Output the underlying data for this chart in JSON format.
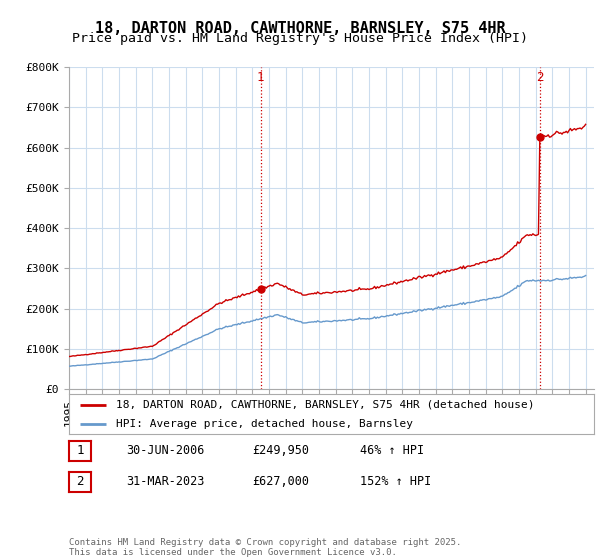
{
  "title": "18, DARTON ROAD, CAWTHORNE, BARNSLEY, S75 4HR",
  "subtitle": "Price paid vs. HM Land Registry's House Price Index (HPI)",
  "ylim": [
    0,
    800000
  ],
  "yticks": [
    0,
    100000,
    200000,
    300000,
    400000,
    500000,
    600000,
    700000,
    800000
  ],
  "ytick_labels": [
    "£0",
    "£100K",
    "£200K",
    "£300K",
    "£400K",
    "£500K",
    "£600K",
    "£700K",
    "£800K"
  ],
  "hpi_color": "#6699cc",
  "price_color": "#cc0000",
  "background_color": "#ffffff",
  "grid_color": "#ccddee",
  "transactions": [
    {
      "t": 2006.5,
      "price": 249950,
      "label": "1"
    },
    {
      "t": 2023.25,
      "price": 627000,
      "label": "2"
    }
  ],
  "legend_line1": "18, DARTON ROAD, CAWTHORNE, BARNSLEY, S75 4HR (detached house)",
  "legend_line2": "HPI: Average price, detached house, Barnsley",
  "info_rows": [
    {
      "num": "1",
      "date": "30-JUN-2006",
      "price": "£249,950",
      "hpi": "46% ↑ HPI"
    },
    {
      "num": "2",
      "date": "31-MAR-2023",
      "price": "£627,000",
      "hpi": "152% ↑ HPI"
    }
  ],
  "footer": "Contains HM Land Registry data © Crown copyright and database right 2025.\nThis data is licensed under the Open Government Licence v3.0.",
  "title_fontsize": 11,
  "subtitle_fontsize": 9.5,
  "tick_fontsize": 8,
  "legend_fontsize": 8,
  "info_fontsize": 8.5,
  "footer_fontsize": 6.5,
  "hpi_anchors_x": [
    1995.0,
    2000.0,
    2004.0,
    2007.5,
    2009.0,
    2013.0,
    2016.0,
    2019.0,
    2021.0,
    2022.5,
    2023.5,
    2025.0,
    2026.0
  ],
  "hpi_anchors_y": [
    57000,
    75000,
    150000,
    185000,
    165000,
    175000,
    195000,
    215000,
    230000,
    270000,
    270000,
    275000,
    280000
  ]
}
